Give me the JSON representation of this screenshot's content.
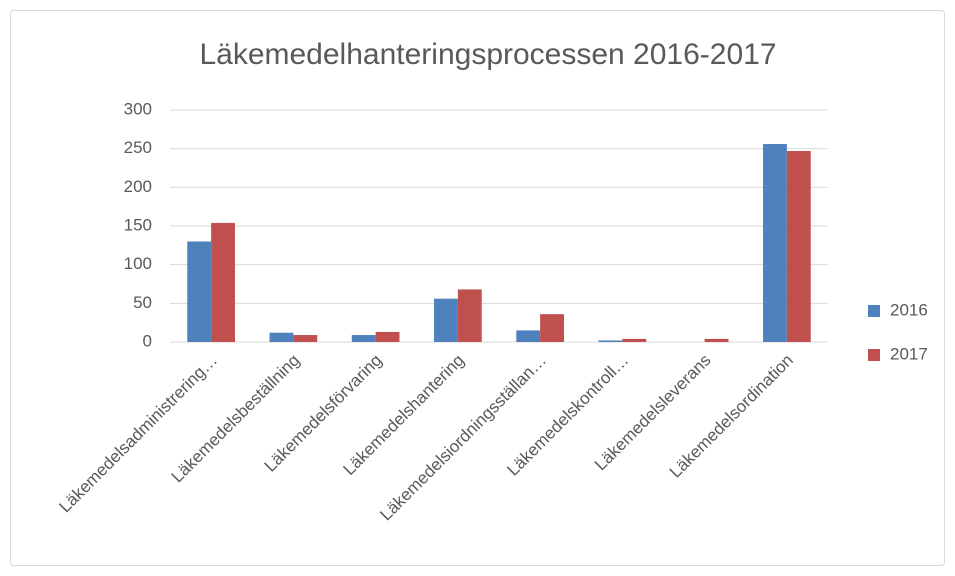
{
  "chart_data": {
    "type": "bar",
    "title": "Läkemedelhanteringsprocessen 2016-2017",
    "categories": [
      "Läkemedelsadministrering…",
      "Läkemedelsbeställning",
      "Läkemedelsförvaring",
      "Läkemedelshantering",
      "Läkemedelsiordningsställan…",
      "Läkemedelskontroll…",
      "Läkemedelsleverans",
      "Läkemedelsordination"
    ],
    "series": [
      {
        "name": "2016",
        "color": "#4f81bd",
        "values": [
          130,
          12,
          9,
          56,
          15,
          2,
          0,
          256
        ]
      },
      {
        "name": "2017",
        "color": "#c0504d",
        "values": [
          154,
          9,
          13,
          68,
          36,
          4,
          4,
          247
        ]
      }
    ],
    "ylim": [
      0,
      300
    ],
    "yticks": [
      0,
      50,
      100,
      150,
      200,
      250,
      300
    ],
    "grid": true,
    "legend": "right"
  }
}
